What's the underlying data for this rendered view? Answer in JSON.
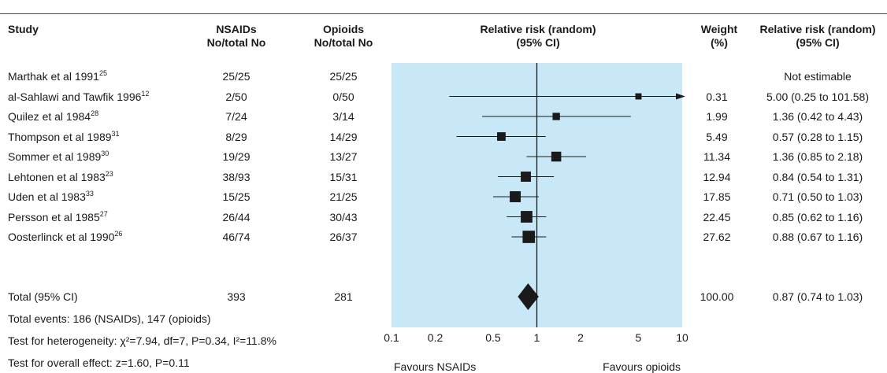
{
  "headers": {
    "study": "Study",
    "nsaids": [
      "NSAIDs",
      "No/total No"
    ],
    "opioids": [
      "Opioids",
      "No/total No"
    ],
    "plot": [
      "Relative risk (random)",
      "(95% CI)"
    ],
    "weight": [
      "Weight",
      "(%)"
    ],
    "rr": [
      "Relative risk (random)",
      "(95% CI)"
    ]
  },
  "studies": [
    {
      "name": "Marthak et al 1991",
      "ref": "25",
      "nsaids": "25/25",
      "opioids": "25/25",
      "weight": "",
      "rr_text": "Not estimable"
    },
    {
      "name": "al-Sahlawi and Tawfik 1996",
      "ref": "12",
      "nsaids": "2/50",
      "opioids": "0/50",
      "weight": "0.31",
      "rr_text": "5.00 (0.25 to 101.58)"
    },
    {
      "name": "Quilez et al 1984",
      "ref": "28",
      "nsaids": "7/24",
      "opioids": "3/14",
      "weight": "1.99",
      "rr_text": "1.36 (0.42 to 4.43)"
    },
    {
      "name": "Thompson et al 1989",
      "ref": "31",
      "nsaids": "8/29",
      "opioids": "14/29",
      "weight": "5.49",
      "rr_text": "0.57 (0.28 to 1.15)"
    },
    {
      "name": "Sommer et al 1989",
      "ref": "30",
      "nsaids": "19/29",
      "opioids": "13/27",
      "weight": "11.34",
      "rr_text": "1.36 (0.85 to 2.18)"
    },
    {
      "name": "Lehtonen et al 1983",
      "ref": "23",
      "nsaids": "38/93",
      "opioids": "15/31",
      "weight": "12.94",
      "rr_text": "0.84 (0.54 to 1.31)"
    },
    {
      "name": "Uden et al 1983",
      "ref": "33",
      "nsaids": "15/25",
      "opioids": "21/25",
      "weight": "17.85",
      "rr_text": "0.71 (0.50 to 1.03)"
    },
    {
      "name": "Persson et al 1985",
      "ref": "27",
      "nsaids": "26/44",
      "opioids": "30/43",
      "weight": "22.45",
      "rr_text": "0.85 (0.62 to 1.16)"
    },
    {
      "name": "Oosterlinck et al 1990",
      "ref": "26",
      "nsaids": "46/74",
      "opioids": "26/37",
      "weight": "27.62",
      "rr_text": "0.88 (0.67 to 1.16)"
    }
  ],
  "total": {
    "label": "Total (95% CI)",
    "nsaids": "393",
    "opioids": "281",
    "weight": "100.00",
    "rr_text": "0.87 (0.74 to 1.03)"
  },
  "footnotes": {
    "events": "Total events: 186 (NSAIDs), 147 (opioids)",
    "heterogeneity": "Test for heterogeneity: χ²=7.94, df=7, P=0.34, I²=11.8%",
    "overall": "Test for overall effect: z=1.60, P=0.11"
  },
  "axis": {
    "favours_left": "Favours NSAIDs",
    "favours_right": "Favours opioids"
  },
  "colors": {
    "panel": "#c8e8f7",
    "marker": "#1a1a1a",
    "text": "#1a1a1a"
  },
  "chart_data": {
    "type": "forest",
    "scale": "log",
    "xlim": [
      0.1,
      10
    ],
    "ticks": [
      0.1,
      0.2,
      0.5,
      1,
      2,
      5,
      10
    ],
    "tick_labels": [
      "0.1",
      "0.2",
      "0.5",
      "1",
      "2",
      "5",
      "10"
    ],
    "reference_line": 1,
    "studies": [
      {
        "name": "Marthak et al 1991",
        "rr": null,
        "lo": null,
        "hi": null,
        "weight": null
      },
      {
        "name": "al-Sahlawi and Tawfik 1996",
        "rr": 5.0,
        "lo": 0.25,
        "hi": 101.58,
        "weight": 0.31
      },
      {
        "name": "Quilez et al 1984",
        "rr": 1.36,
        "lo": 0.42,
        "hi": 4.43,
        "weight": 1.99
      },
      {
        "name": "Thompson et al 1989",
        "rr": 0.57,
        "lo": 0.28,
        "hi": 1.15,
        "weight": 5.49
      },
      {
        "name": "Sommer et al 1989",
        "rr": 1.36,
        "lo": 0.85,
        "hi": 2.18,
        "weight": 11.34
      },
      {
        "name": "Lehtonen et al 1983",
        "rr": 0.84,
        "lo": 0.54,
        "hi": 1.31,
        "weight": 12.94
      },
      {
        "name": "Uden et al 1983",
        "rr": 0.71,
        "lo": 0.5,
        "hi": 1.03,
        "weight": 17.85
      },
      {
        "name": "Persson et al 1985",
        "rr": 0.85,
        "lo": 0.62,
        "hi": 1.16,
        "weight": 22.45
      },
      {
        "name": "Oosterlinck et al 1990",
        "rr": 0.88,
        "lo": 0.67,
        "hi": 1.16,
        "weight": 27.62
      }
    ],
    "pooled": {
      "rr": 0.87,
      "lo": 0.74,
      "hi": 1.03,
      "weight": 100.0
    }
  }
}
